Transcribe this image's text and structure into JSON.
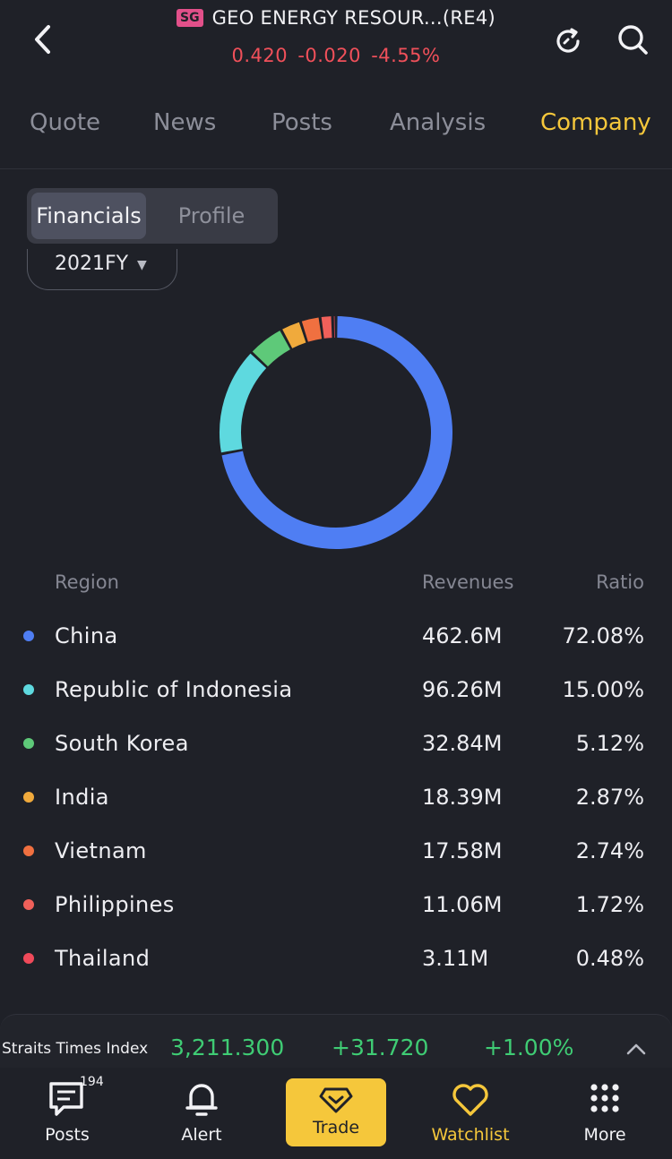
{
  "header": {
    "market_badge": "SG",
    "title": "GEO ENERGY RESOUR...(RE4)",
    "price": "0.420",
    "change": "-0.020",
    "change_pct": "-4.55%",
    "icons": [
      "back-arrow-icon",
      "refresh-icon",
      "search-icon"
    ]
  },
  "tabs": [
    {
      "label": "Quote",
      "active": false
    },
    {
      "label": "News",
      "active": false
    },
    {
      "label": "Posts",
      "active": false
    },
    {
      "label": "Analysis",
      "active": false
    },
    {
      "label": "Company",
      "active": true
    }
  ],
  "segment": {
    "items": [
      "Financials",
      "Profile"
    ],
    "active": "Financials"
  },
  "period": {
    "value": "2021FY"
  },
  "table": {
    "headers": {
      "region": "Region",
      "revenues": "Revenues",
      "ratio": "Ratio"
    },
    "rows": [
      {
        "region": "China",
        "revenues": "462.6M",
        "ratio": "72.08%",
        "color": "#4f7ef3"
      },
      {
        "region": "Republic of Indonesia",
        "revenues": "96.26M",
        "ratio": "15.00%",
        "color": "#5ed9df"
      },
      {
        "region": "South Korea",
        "revenues": "32.84M",
        "ratio": "5.12%",
        "color": "#5ec979"
      },
      {
        "region": "India",
        "revenues": "18.39M",
        "ratio": "2.87%",
        "color": "#f0aa3c"
      },
      {
        "region": "Vietnam",
        "revenues": "17.58M",
        "ratio": "2.74%",
        "color": "#f07040"
      },
      {
        "region": "Philippines",
        "revenues": "11.06M",
        "ratio": "1.72%",
        "color": "#f0605a"
      },
      {
        "region": "Thailand",
        "revenues": "3.11M",
        "ratio": "0.48%",
        "color": "#f04a5a"
      }
    ]
  },
  "chart_data": {
    "type": "pie",
    "variant": "donut",
    "categories": [
      "China",
      "Republic of Indonesia",
      "South Korea",
      "India",
      "Vietnam",
      "Philippines",
      "Thailand"
    ],
    "values": [
      72.08,
      15.0,
      5.12,
      2.87,
      2.74,
      1.72,
      0.48
    ],
    "colors": [
      "#4f7ef3",
      "#5ed9df",
      "#5ec979",
      "#f0aa3c",
      "#f07040",
      "#f0605a",
      "#f04a5a"
    ]
  },
  "ticker": {
    "name": "Straits Times Index",
    "value": "3,211.300",
    "change": "+31.720",
    "change_pct": "+1.00%"
  },
  "bottom_nav": {
    "posts": {
      "label": "Posts",
      "badge": "194"
    },
    "alert": {
      "label": "Alert"
    },
    "trade": {
      "label": "Trade"
    },
    "watchlist": {
      "label": "Watchlist"
    },
    "more": {
      "label": "More"
    }
  },
  "colors": {
    "accent": "#f5c73b",
    "down": "#f0505a",
    "up": "#3fcc74",
    "background": "#1f2128"
  }
}
